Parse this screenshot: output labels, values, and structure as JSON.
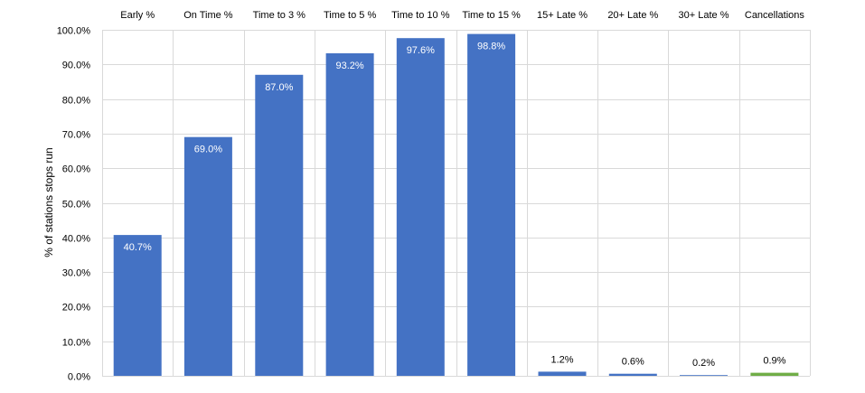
{
  "chart_data": {
    "type": "bar",
    "categories": [
      "Early %",
      "On Time %",
      "Time to 3 %",
      "Time to 5 %",
      "Time to 10 %",
      "Time to 15 %",
      "15+ Late %",
      "20+ Late %",
      "30+ Late %",
      "Cancellations"
    ],
    "values": [
      40.7,
      69.0,
      87.0,
      93.2,
      97.6,
      98.8,
      1.2,
      0.6,
      0.2,
      0.9
    ],
    "value_labels": [
      "40.7%",
      "69.0%",
      "87.0%",
      "93.2%",
      "97.6%",
      "98.8%",
      "1.2%",
      "0.6%",
      "0.2%",
      "0.9%"
    ],
    "bar_colors": [
      "#4472c4",
      "#4472c4",
      "#4472c4",
      "#4472c4",
      "#4472c4",
      "#4472c4",
      "#4472c4",
      "#4472c4",
      "#4472c4",
      "#70ad47"
    ],
    "ylabel": "% of stations stops run",
    "ylim": [
      0,
      100
    ],
    "y_ticks": [
      0,
      10,
      20,
      30,
      40,
      50,
      60,
      70,
      80,
      90,
      100
    ],
    "y_tick_labels": [
      "0.0%",
      "10.0%",
      "20.0%",
      "30.0%",
      "40.0%",
      "50.0%",
      "60.0%",
      "70.0%",
      "80.0%",
      "90.0%",
      "100.0%"
    ],
    "category_label_position": "top",
    "grid": true
  }
}
